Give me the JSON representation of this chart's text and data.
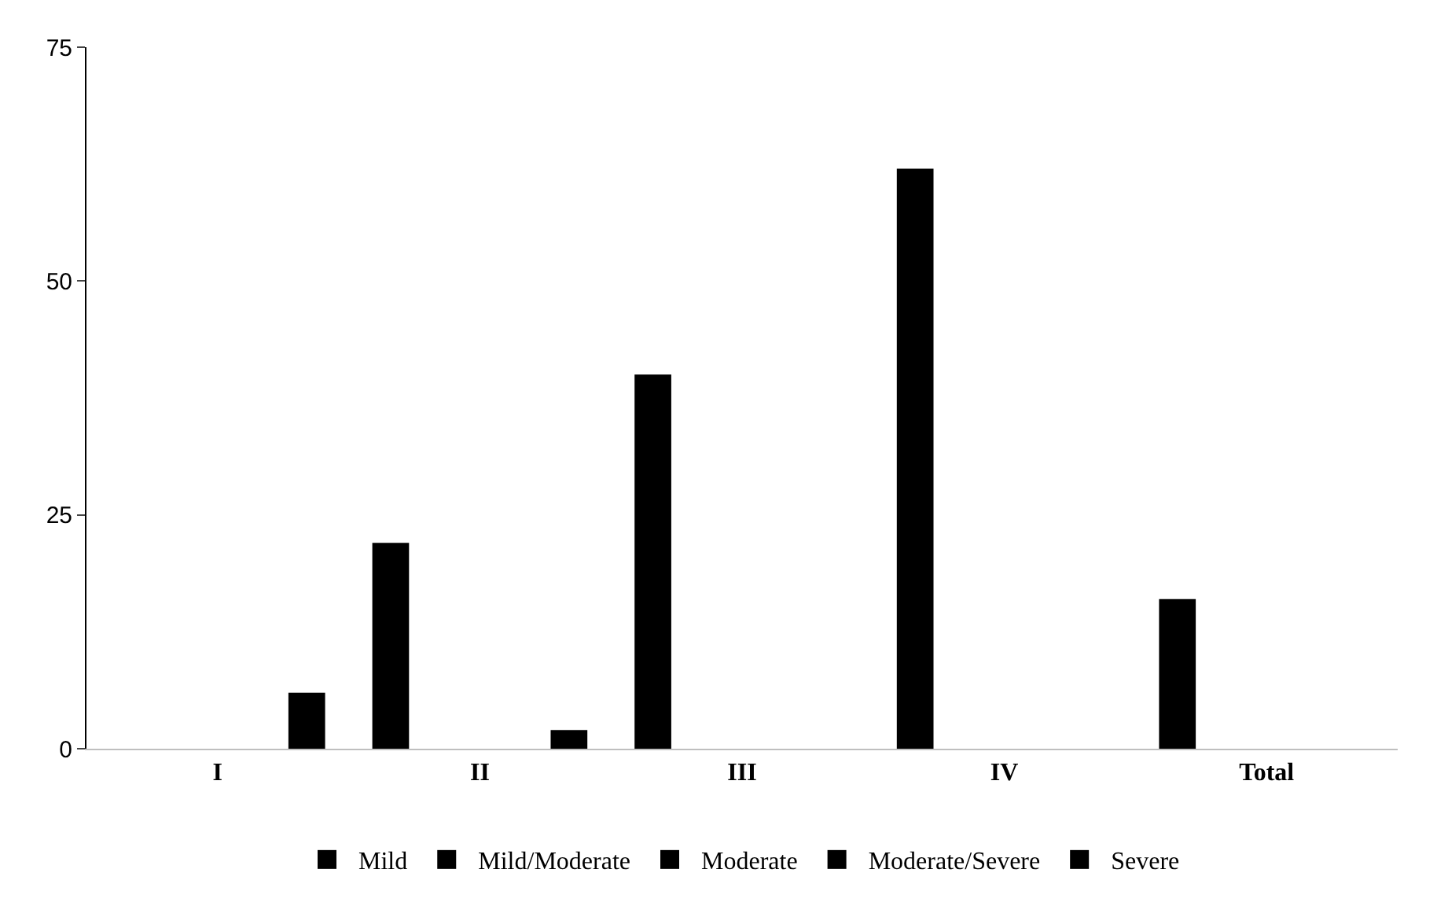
{
  "chart_data": {
    "type": "bar",
    "categories": [
      "I",
      "II",
      "III",
      "IV",
      "Total"
    ],
    "series": [
      {
        "name": "Mild",
        "color": "#000000",
        "values": [
          null,
          22,
          40,
          62,
          16
        ]
      },
      {
        "name": "Mild/Moderate",
        "color": "#000000",
        "values": [
          null,
          null,
          null,
          null,
          null
        ]
      },
      {
        "name": "Moderate",
        "color": "#000000",
        "values": [
          null,
          null,
          null,
          null,
          null
        ]
      },
      {
        "name": "Moderate/Severe",
        "color": "#000000",
        "values": [
          null,
          null,
          null,
          null,
          null
        ]
      },
      {
        "name": "Severe",
        "color": "#000000",
        "values": [
          6,
          2,
          null,
          null,
          null
        ]
      }
    ],
    "ylim": [
      0,
      75
    ],
    "yticks": [
      0,
      25,
      50,
      75
    ],
    "legend": "bottom"
  }
}
